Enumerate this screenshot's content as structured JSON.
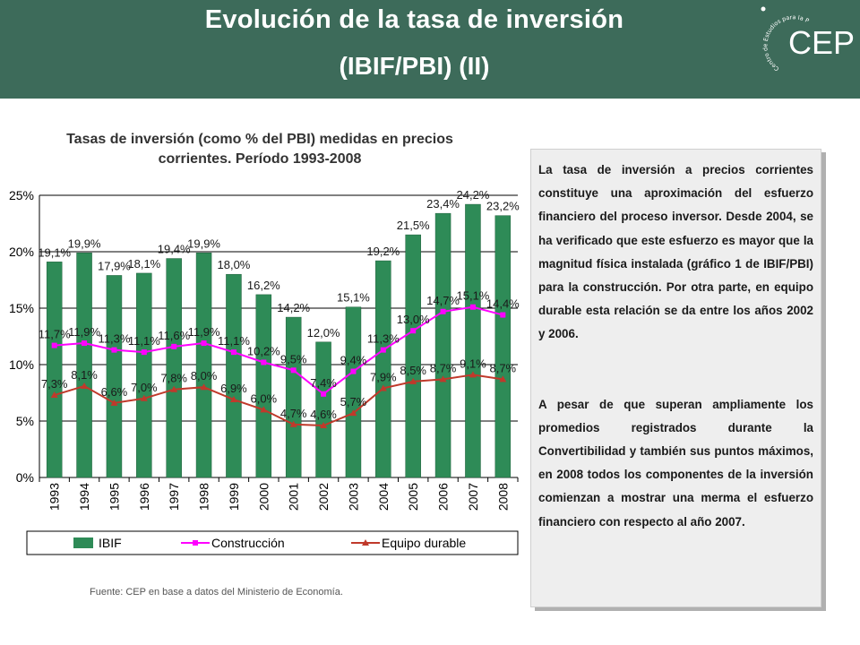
{
  "header": {
    "title_line1": "Evolución de la tasa de inversión",
    "title_line2": "(IBIF/PBI)  (II)",
    "logo_text": "CEP",
    "logo_ring_text": "Centro de Estudios para la Producción"
  },
  "colors": {
    "header_bg": "#3d6b5a",
    "bar_fill": "#2e8b57",
    "construccion_line": "#ff00ff",
    "equipo_line": "#c0392b"
  },
  "chart_data": {
    "type": "bar",
    "title": "Tasas de inversión (como % del PBI) medidas en precios corrientes. Período 1993-2008",
    "categories": [
      "1993",
      "1994",
      "1995",
      "1996",
      "1997",
      "1998",
      "1999",
      "2000",
      "2001",
      "2002",
      "2003",
      "2004",
      "2005",
      "2006",
      "2007",
      "2008"
    ],
    "ylim": [
      0,
      25
    ],
    "yticks": [
      "0%",
      "5%",
      "10%",
      "15%",
      "20%",
      "25%"
    ],
    "grid": true,
    "legend_position": "bottom",
    "series": [
      {
        "name": "IBIF",
        "type": "bar",
        "values": [
          19.1,
          19.9,
          17.9,
          18.1,
          19.4,
          19.9,
          18.0,
          16.2,
          14.2,
          12.0,
          15.1,
          19.2,
          21.5,
          23.4,
          24.2,
          23.2
        ],
        "labels": [
          "19,1%",
          "19,9%",
          "17,9%",
          "18,1%",
          "19,4%",
          "19,9%",
          "18,0%",
          "16,2%",
          "14,2%",
          "12,0%",
          "15,1%",
          "19,2%",
          "21,5%",
          "23,4%",
          "24,2%",
          "23,2%"
        ]
      },
      {
        "name": "Construcción",
        "type": "line",
        "values": [
          11.7,
          11.9,
          11.3,
          11.1,
          11.6,
          11.9,
          11.1,
          10.2,
          9.5,
          7.4,
          9.4,
          11.3,
          13.0,
          14.7,
          15.1,
          14.4
        ],
        "labels": [
          "11,7%",
          "11,9%",
          "11,3%",
          "11,1%",
          "11,6%",
          "11,9%",
          "11,1%",
          "10,2%",
          "9,5%",
          "7,4%",
          "9,4%",
          "11,3%",
          "13,0%",
          "14,7%",
          "15,1%",
          "14,4%"
        ]
      },
      {
        "name": "Equipo durable",
        "type": "line",
        "values": [
          7.3,
          8.1,
          6.6,
          7.0,
          7.8,
          8.0,
          6.9,
          6.0,
          4.7,
          4.6,
          5.7,
          7.9,
          8.5,
          8.7,
          9.1,
          8.7
        ],
        "labels": [
          "7,3%",
          "8,1%",
          "6,6%",
          "7,0%",
          "7,8%",
          "8,0%",
          "6,9%",
          "6,0%",
          "4,7%",
          "4,6%",
          "5,7%",
          "7,9%",
          "8,5%",
          "8,7%",
          "9,1%",
          "8,7%"
        ]
      }
    ]
  },
  "source": "Fuente: CEP en base a datos del Ministerio de Economía.",
  "textbox": {
    "paragraph1": "La tasa de inversión a precios corrientes constituye una aproximación del esfuerzo financiero del proceso inversor. Desde 2004, se ha verificado que este esfuerzo es mayor que la magnitud física instalada (gráfico 1 de IBIF/PBI) para la construcción. Por otra parte, en equipo durable esta relación se da entre los años 2002 y 2006.",
    "paragraph2": "A pesar de que superan ampliamente los promedios registrados durante la Convertibilidad y también sus puntos máximos, en 2008 todos los componentes de la inversión comienzan a mostrar una merma el esfuerzo financiero con respecto al año 2007."
  }
}
